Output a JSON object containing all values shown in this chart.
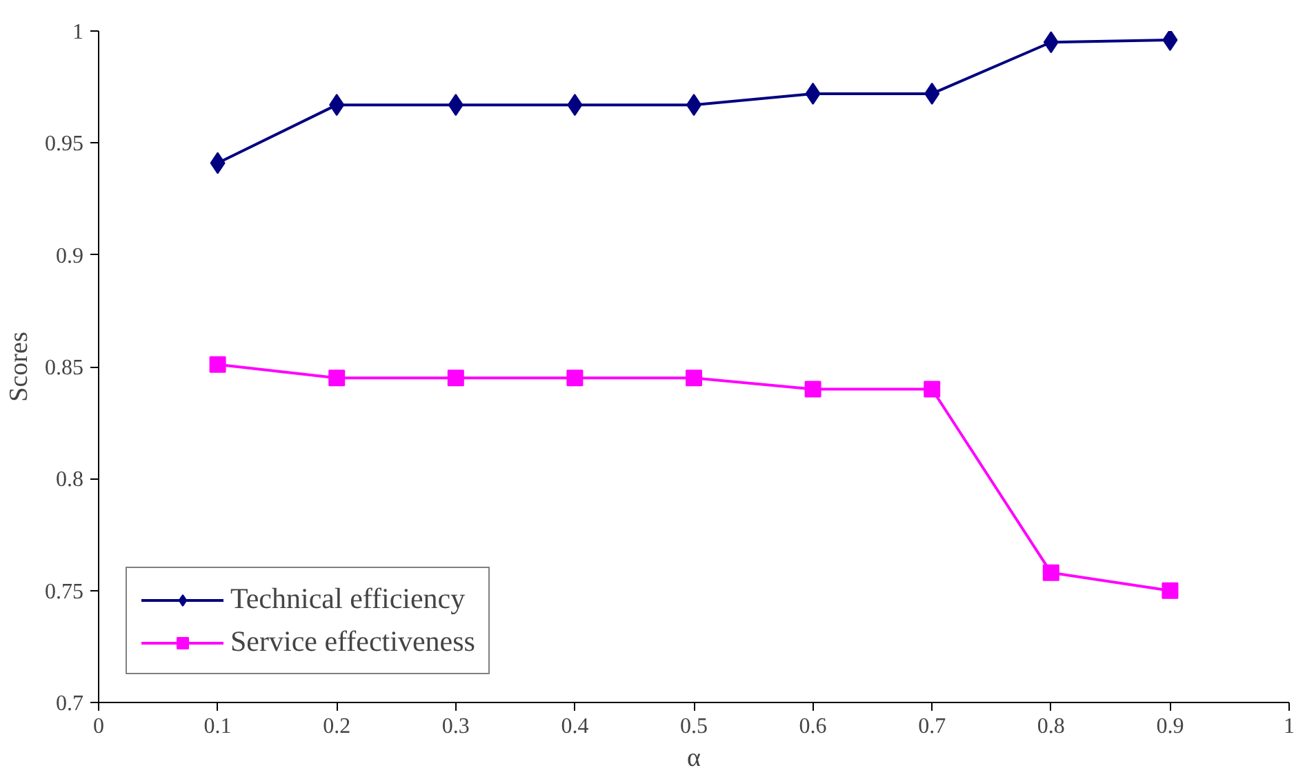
{
  "chart_data": {
    "type": "line",
    "xlabel": "α",
    "ylabel": "Scores",
    "x": [
      0.1,
      0.2,
      0.3,
      0.4,
      0.5,
      0.6,
      0.7,
      0.8,
      0.9
    ],
    "series": [
      {
        "name": "Technical efficiency",
        "color": "#000080",
        "marker": "diamond",
        "values": [
          0.941,
          0.967,
          0.967,
          0.967,
          0.967,
          0.972,
          0.972,
          0.995,
          0.996
        ]
      },
      {
        "name": "Service effectiveness",
        "color": "#ff00ff",
        "marker": "square",
        "values": [
          0.851,
          0.845,
          0.845,
          0.845,
          0.845,
          0.84,
          0.84,
          0.758,
          0.75
        ]
      }
    ],
    "xlim": [
      0,
      1
    ],
    "xticks": [
      0,
      0.1,
      0.2,
      0.3,
      0.4,
      0.5,
      0.6,
      0.7,
      0.8,
      0.9,
      1
    ],
    "ylim": [
      0.7,
      1
    ],
    "yticks": [
      0.7,
      0.75,
      0.8,
      0.85,
      0.9,
      0.95,
      1
    ],
    "grid": false,
    "legend": "bottom left",
    "line_style": "solid"
  }
}
